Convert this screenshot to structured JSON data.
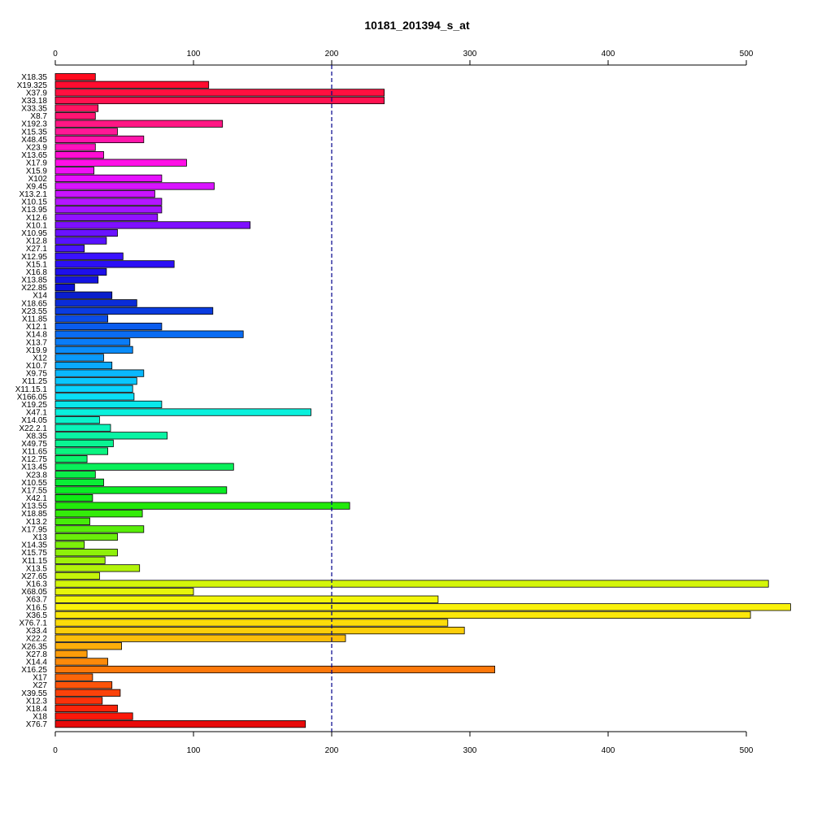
{
  "chart_data": {
    "type": "bar",
    "orientation": "horizontal",
    "title": "10181_201394_s_at",
    "xlabel": "",
    "ylabel": "",
    "xlim": [
      0,
      530
    ],
    "xticks": [
      0,
      100,
      200,
      300,
      400,
      500
    ],
    "axes": [
      "top",
      "bottom"
    ],
    "reference_line": {
      "x": 200,
      "style": "dashed",
      "color": "#00008b"
    },
    "grid": false,
    "legend": "none",
    "bar_outline": "#000000",
    "color_scheme": "rainbow",
    "categories": [
      "X18.35",
      "X19.325",
      "X37.9",
      "X33.18",
      "X33.35",
      "X8.7",
      "X192.3",
      "X15.35",
      "X48.45",
      "X23.9",
      "X13.65",
      "X17.9",
      "X15.9",
      "X102",
      "X9.45",
      "X13.2.1",
      "X10.15",
      "X13.95",
      "X12.6",
      "X10.1",
      "X10.95",
      "X12.8",
      "X27.1",
      "X12.95",
      "X15.1",
      "X16.8",
      "X13.85",
      "X22.85",
      "X14",
      "X18.65",
      "X23.55",
      "X11.85",
      "X12.1",
      "X14.8",
      "X13.7",
      "X19.9",
      "X12",
      "X10.7",
      "X9.75",
      "X11.25",
      "X11.15.1",
      "X166.05",
      "X19.25",
      "X47.1",
      "X14.05",
      "X22.2.1",
      "X8.35",
      "X49.75",
      "X11.65",
      "X12.75",
      "X13.45",
      "X23.8",
      "X10.55",
      "X17.55",
      "X42.1",
      "X13.55",
      "X18.85",
      "X13.2",
      "X17.95",
      "X13",
      "X14.35",
      "X15.75",
      "X11.15",
      "X13.5",
      "X27.65",
      "X16.3",
      "X68.05",
      "X63.7",
      "X16.5",
      "X36.5",
      "X76.7.1",
      "X33.4",
      "X22.2",
      "X26.35",
      "X27.8",
      "X14.4",
      "X16.25",
      "X17",
      "X27",
      "X39.55",
      "X12.3",
      "X18.4",
      "X18",
      "X76.7"
    ],
    "values": [
      29,
      111,
      238,
      238,
      31,
      29,
      121,
      45,
      64,
      29,
      35,
      95,
      28,
      77,
      115,
      72,
      77,
      77,
      74,
      141,
      45,
      37,
      21,
      49,
      86,
      37,
      31,
      14,
      41,
      59,
      114,
      38,
      77,
      136,
      54,
      56,
      35,
      41,
      64,
      59,
      56,
      57,
      77,
      185,
      32,
      40,
      81,
      42,
      38,
      23,
      129,
      29,
      35,
      124,
      27,
      213,
      63,
      25,
      64,
      45,
      21,
      45,
      36,
      61,
      32,
      516,
      100,
      277,
      532,
      503,
      284,
      296,
      210,
      48,
      23,
      38,
      318,
      27,
      41,
      47,
      34,
      45,
      56,
      181
    ],
    "colors": [
      "#FF0A1E",
      "#FF0D30",
      "#FF1040",
      "#FF1250",
      "#FF1462",
      "#FF1572",
      "#FF1784",
      "#FF1896",
      "#FF15AA",
      "#FF12BE",
      "#FF0ED2",
      "#FF10E6",
      "#F010F5",
      "#E610FF",
      "#D814FF",
      "#C814FF",
      "#B516FF",
      "#A214FF",
      "#9012FF",
      "#7E10FF",
      "#6A12FF",
      "#5812FF",
      "#4A14FF",
      "#3A12FF",
      "#2C10F5",
      "#1E10EA",
      "#1414E0",
      "#0C10D8",
      "#0A1ECC",
      "#0A2CD8",
      "#0A3CE0",
      "#0A4CE8",
      "#0A5CEE",
      "#0A6CF2",
      "#0A7CF6",
      "#0A8CF8",
      "#0A9AFA",
      "#0AAAFC",
      "#0AB8FC",
      "#0AC6FC",
      "#0AD2FC",
      "#0ADEF6",
      "#0AE8EA",
      "#0AF0DC",
      "#0AF2CA",
      "#0AF4B8",
      "#0AF4A4",
      "#0AF492",
      "#0AF480",
      "#0AF26C",
      "#0AF05A",
      "#0AEE48",
      "#0AEE36",
      "#0AEC24",
      "#10EA14",
      "#22EA0A",
      "#34EC0A",
      "#46EC0A",
      "#58EE0A",
      "#6AEE0A",
      "#7CF00A",
      "#8EF00A",
      "#A0F20A",
      "#B2F40A",
      "#C4F40A",
      "#D4F60A",
      "#E6F60A",
      "#F2F60A",
      "#FAF20A",
      "#FCE80A",
      "#FCDC0A",
      "#FCCE0A",
      "#FCBE0A",
      "#FCAE0A",
      "#FC9C0A",
      "#FC8A0A",
      "#FC780A",
      "#FC660A",
      "#FC540A",
      "#FC420A",
      "#FC320A",
      "#FC240A",
      "#FC180A",
      "#E80A0A"
    ]
  }
}
